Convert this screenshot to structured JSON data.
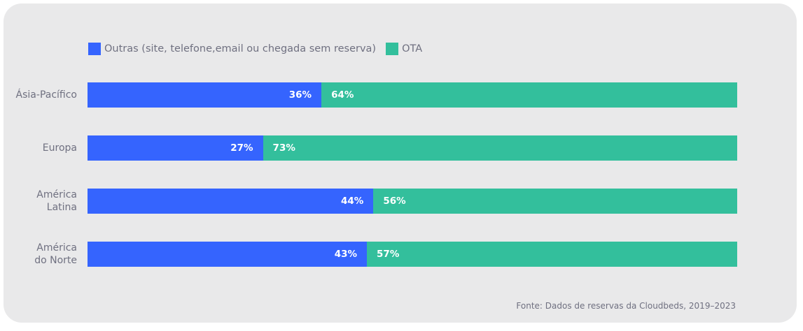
{
  "colors": {
    "outras": "#3564fe",
    "ota": "#33bf9c"
  },
  "legend": [
    {
      "label": "Outras (site, telefone,email ou chegada sem reserva)",
      "color": "#3564fe"
    },
    {
      "label": "OTA",
      "color": "#33bf9c"
    }
  ],
  "source": "Fonte: Dados de reservas da Cloudbeds, 2019–2023",
  "chart_data": {
    "type": "bar",
    "orientation": "horizontal",
    "stacked": true,
    "categories": [
      "Ásia-Pacífico",
      "Europa",
      "América Latina",
      "América do Norte"
    ],
    "category_lines": [
      [
        "Ásia-Pacífico"
      ],
      [
        "Europa"
      ],
      [
        "América",
        "Latina"
      ],
      [
        "América",
        "do Norte"
      ]
    ],
    "series": [
      {
        "name": "Outras (site, telefone,email ou chegada sem reserva)",
        "values": [
          36,
          27,
          44,
          43
        ],
        "labels": [
          "36%",
          "27%",
          "44%",
          "43%"
        ]
      },
      {
        "name": "OTA",
        "values": [
          64,
          73,
          56,
          57
        ],
        "labels": [
          "64%",
          "73%",
          "56%",
          "57%"
        ]
      }
    ],
    "xlim": [
      0,
      100
    ],
    "grid": false,
    "legend_position": "top-left",
    "title": "",
    "xlabel": "",
    "ylabel": ""
  }
}
